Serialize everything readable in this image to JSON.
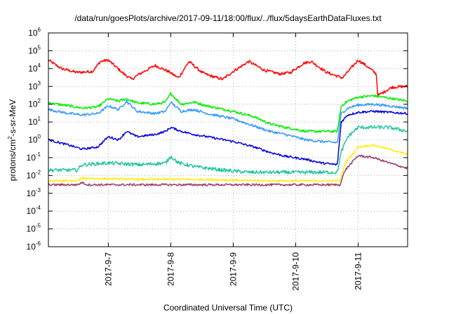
{
  "chart_data": {
    "type": "line",
    "title": "/data/run/goesPlots/archive/2017-09-11/18:00/flux/../flux/5daysEarthDataFluxes.txt",
    "xlabel": "Coordinated Universal Time (UTC)",
    "ylabel": "protons/cm2-s-sr-MeV",
    "ylabel_parts": {
      "pre": "protons/cm",
      "sup": "2",
      "post": "-s-sr-MeV"
    },
    "yscale": "log",
    "ylim": [
      1e-06,
      1000000.0
    ],
    "y_ticks": [
      {
        "value": 1e-06,
        "base": "10",
        "exp": "-6"
      },
      {
        "value": 1e-05,
        "base": "10",
        "exp": "-5"
      },
      {
        "value": 0.0001,
        "base": "10",
        "exp": "-4"
      },
      {
        "value": 0.001,
        "base": "10",
        "exp": "-3"
      },
      {
        "value": 0.01,
        "base": "10",
        "exp": "-2"
      },
      {
        "value": 0.1,
        "base": "10",
        "exp": "-1"
      },
      {
        "value": 1.0,
        "base": "10",
        "exp": "0"
      },
      {
        "value": 10.0,
        "base": "10",
        "exp": "1"
      },
      {
        "value": 100.0,
        "base": "10",
        "exp": "2"
      },
      {
        "value": 1000.0,
        "base": "10",
        "exp": "3"
      },
      {
        "value": 10000.0,
        "base": "10",
        "exp": "4"
      },
      {
        "value": 100000.0,
        "base": "10",
        "exp": "5"
      },
      {
        "value": 1000000.0,
        "base": "10",
        "exp": "6"
      }
    ],
    "xlim": [
      "2017-09-06 01:00",
      "2017-09-11 19:00"
    ],
    "x_ticks": [
      {
        "value": "2017-09-07 00:00",
        "label": "2017-9-7"
      },
      {
        "value": "2017-09-08 00:00",
        "label": "2017-9-8"
      },
      {
        "value": "2017-09-09 00:00",
        "label": "2017-9-9"
      },
      {
        "value": "2017-09-10 00:00",
        "label": "2017-9-10"
      },
      {
        "value": "2017-09-11 00:00",
        "label": "2017-9-11"
      }
    ],
    "grid": true,
    "legend": "none",
    "series": [
      {
        "color": "#ff0000",
        "noise": 0.08,
        "x": [
          "2017-09-06 01:00",
          "2017-09-06 06:00",
          "2017-09-06 12:00",
          "2017-09-06 18:00",
          "2017-09-06 21:00",
          "2017-09-07 00:00",
          "2017-09-07 06:00",
          "2017-09-07 09:00",
          "2017-09-07 12:00",
          "2017-09-07 18:00",
          "2017-09-07 23:00",
          "2017-09-08 03:00",
          "2017-09-08 07:00",
          "2017-09-08 12:00",
          "2017-09-08 15:00",
          "2017-09-08 20:00",
          "2017-09-09 00:00",
          "2017-09-09 06:00",
          "2017-09-09 12:00",
          "2017-09-09 18:00",
          "2017-09-09 22:00",
          "2017-09-10 03:00",
          "2017-09-10 06:00",
          "2017-09-10 12:00",
          "2017-09-10 18:00",
          "2017-09-11 00:00",
          "2017-09-11 03:00",
          "2017-09-11 07:00",
          "2017-09-11 07:30",
          "2017-09-11 13:00",
          "2017-09-11 19:00"
        ],
        "y": [
          30000,
          10000,
          6000,
          7000,
          25000,
          30000,
          5000,
          2500,
          5000,
          15000,
          7000,
          3000,
          25000,
          6000,
          4000,
          2500,
          7000,
          25000,
          8000,
          5000,
          6000,
          20000,
          25000,
          6000,
          3000,
          30000,
          15000,
          5000,
          300,
          900,
          1000
        ]
      },
      {
        "color": "#00ee00",
        "noise": 0.07,
        "x": [
          "2017-09-06 01:00",
          "2017-09-06 09:00",
          "2017-09-06 14:00",
          "2017-09-06 20:00",
          "2017-09-07 00:00",
          "2017-09-07 04:00",
          "2017-09-07 07:00",
          "2017-09-07 11:00",
          "2017-09-07 18:00",
          "2017-09-07 22:00",
          "2017-09-08 00:00",
          "2017-09-08 04:00",
          "2017-09-08 09:00",
          "2017-09-08 14:00",
          "2017-09-09 00:00",
          "2017-09-09 08:00",
          "2017-09-09 14:00",
          "2017-09-09 20:00",
          "2017-09-10 04:00",
          "2017-09-10 10:00",
          "2017-09-10 16:00",
          "2017-09-10 17:30",
          "2017-09-10 20:00",
          "2017-09-11 00:00",
          "2017-09-11 06:00",
          "2017-09-11 12:00",
          "2017-09-11 19:00"
        ],
        "y": [
          120,
          80,
          60,
          70,
          200,
          150,
          200,
          120,
          100,
          130,
          400,
          100,
          130,
          80,
          40,
          20,
          8,
          5,
          3,
          3,
          3,
          80,
          150,
          250,
          300,
          220,
          150
        ]
      },
      {
        "color": "#3399ff",
        "noise": 0.07,
        "x": [
          "2017-09-06 01:00",
          "2017-09-06 09:00",
          "2017-09-06 14:00",
          "2017-09-06 20:00",
          "2017-09-07 00:00",
          "2017-09-07 04:00",
          "2017-09-07 07:00",
          "2017-09-07 11:00",
          "2017-09-07 18:00",
          "2017-09-07 22:00",
          "2017-09-08 00:00",
          "2017-09-08 04:00",
          "2017-09-08 09:00",
          "2017-09-08 14:00",
          "2017-09-09 00:00",
          "2017-09-09 08:00",
          "2017-09-09 14:00",
          "2017-09-09 20:00",
          "2017-09-10 04:00",
          "2017-09-10 10:00",
          "2017-09-10 16:00",
          "2017-09-10 17:30",
          "2017-09-10 20:00",
          "2017-09-11 00:00",
          "2017-09-11 06:00",
          "2017-09-11 12:00",
          "2017-09-11 19:00"
        ],
        "y": [
          50,
          30,
          25,
          30,
          80,
          50,
          150,
          40,
          30,
          40,
          130,
          40,
          50,
          30,
          15,
          6,
          3,
          2,
          1,
          0.8,
          0.7,
          30,
          60,
          90,
          100,
          80,
          60
        ]
      },
      {
        "color": "#0000dd",
        "noise": 0.06,
        "x": [
          "2017-09-06 01:00",
          "2017-09-06 09:00",
          "2017-09-06 14:00",
          "2017-09-06 20:00",
          "2017-09-07 00:00",
          "2017-09-07 04:00",
          "2017-09-07 07:00",
          "2017-09-07 11:00",
          "2017-09-07 18:00",
          "2017-09-07 22:00",
          "2017-09-08 00:00",
          "2017-09-08 04:00",
          "2017-09-08 09:00",
          "2017-09-08 14:00",
          "2017-09-09 00:00",
          "2017-09-09 08:00",
          "2017-09-09 14:00",
          "2017-09-09 20:00",
          "2017-09-10 04:00",
          "2017-09-10 10:00",
          "2017-09-10 16:00",
          "2017-09-10 17:30",
          "2017-09-10 20:00",
          "2017-09-11 00:00",
          "2017-09-11 06:00",
          "2017-09-11 12:00",
          "2017-09-11 19:00"
        ],
        "y": [
          1.0,
          0.5,
          0.3,
          0.4,
          1.5,
          1,
          3,
          1.5,
          2,
          3,
          5,
          3,
          2,
          1.5,
          0.8,
          0.4,
          0.2,
          0.12,
          0.08,
          0.05,
          0.04,
          10,
          25,
          35,
          40,
          35,
          30
        ]
      },
      {
        "color": "#22c4a0",
        "noise": 0.1,
        "x": [
          "2017-09-06 01:00",
          "2017-09-06 12:00",
          "2017-09-06 14:00",
          "2017-09-07 00:00",
          "2017-09-07 12:00",
          "2017-09-07 22:00",
          "2017-09-08 00:00",
          "2017-09-08 03:00",
          "2017-09-08 10:00",
          "2017-09-08 20:00",
          "2017-09-09 06:00",
          "2017-09-09 16:00",
          "2017-09-10 04:00",
          "2017-09-10 16:00",
          "2017-09-10 17:30",
          "2017-09-10 20:00",
          "2017-09-11 00:00",
          "2017-09-11 06:00",
          "2017-09-11 12:00",
          "2017-09-11 19:00"
        ],
        "y": [
          0.02,
          0.02,
          0.04,
          0.05,
          0.04,
          0.05,
          0.12,
          0.05,
          0.03,
          0.02,
          0.015,
          0.015,
          0.015,
          0.015,
          0.2,
          1.5,
          5,
          5,
          5,
          3
        ]
      },
      {
        "color": "#ffee00",
        "noise": 0.05,
        "x": [
          "2017-09-06 01:00",
          "2017-09-06 12:00",
          "2017-09-06 14:00",
          "2017-09-07 12:00",
          "2017-09-08 12:00",
          "2017-09-09 12:00",
          "2017-09-10 12:00",
          "2017-09-10 17:00",
          "2017-09-10 19:00",
          "2017-09-11 00:00",
          "2017-09-11 06:00",
          "2017-09-11 12:00",
          "2017-09-11 19:00"
        ],
        "y": [
          0.005,
          0.005,
          0.007,
          0.006,
          0.006,
          0.005,
          0.005,
          0.005,
          0.05,
          0.4,
          0.5,
          0.3,
          0.15
        ]
      },
      {
        "color": "#9b3a6e",
        "noise": 0.06,
        "x": [
          "2017-09-06 01:00",
          "2017-09-06 12:00",
          "2017-09-06 14:00",
          "2017-09-06 16:00",
          "2017-09-07 12:00",
          "2017-09-08 12:00",
          "2017-09-09 12:00",
          "2017-09-10 12:00",
          "2017-09-10 17:00",
          "2017-09-10 19:00",
          "2017-09-11 00:00",
          "2017-09-11 06:00",
          "2017-09-11 12:00",
          "2017-09-11 19:00"
        ],
        "y": [
          0.003,
          0.003,
          0.004,
          0.003,
          0.003,
          0.003,
          0.003,
          0.003,
          0.003,
          0.02,
          0.13,
          0.1,
          0.05,
          0.025
        ]
      }
    ]
  }
}
